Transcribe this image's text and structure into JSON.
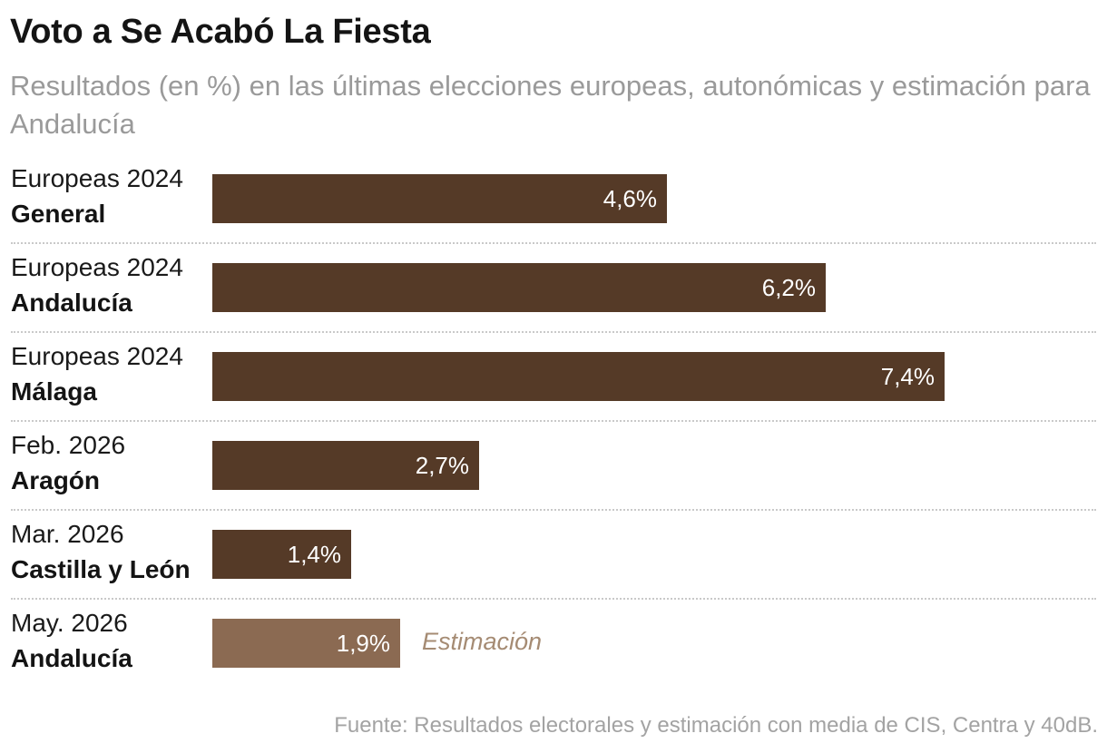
{
  "chart_data": {
    "type": "bar",
    "orientation": "horizontal",
    "title": "Voto a Se Acabó La Fiesta",
    "subtitle": "Resultados (en %) en las últimas elecciones europeas, autonómicas y estimación para Andalucía",
    "categories": [
      {
        "line1": "Europeas 2024",
        "line2": "General"
      },
      {
        "line1": "Europeas 2024",
        "line2": "Andalucía"
      },
      {
        "line1": "Europeas 2024",
        "line2": "Málaga"
      },
      {
        "line1": "Feb. 2026",
        "line2": "Aragón"
      },
      {
        "line1": "Mar. 2026",
        "line2": "Castilla y León"
      },
      {
        "line1": "May. 2026",
        "line2": "Andalucía"
      }
    ],
    "values": [
      4.6,
      6.2,
      7.4,
      2.7,
      1.4,
      1.9
    ],
    "value_labels": [
      "4,6%",
      "6,2%",
      "7,4%",
      "2,7%",
      "1,4%",
      "1,9%"
    ],
    "estimate_index": 5,
    "annotation": "Estimación",
    "colors": {
      "result": "#553a27",
      "estimate": "#8b6a52",
      "annotation": "#a58b73"
    },
    "xlim": [
      0,
      8
    ],
    "grid": false,
    "legend": "none",
    "source": "Fuente: Resultados electorales y estimación con media de CIS, Centra y 40dB."
  }
}
